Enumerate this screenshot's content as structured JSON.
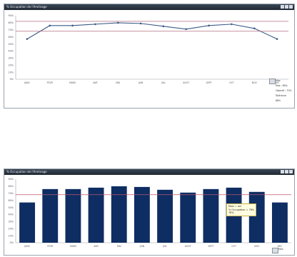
{
  "panel_top": {
    "title": "% Occupation de l'Aménage"
  },
  "panel_bottom": {
    "title": "% Occupation de l'Aménage"
  },
  "chart_data": [
    {
      "type": "line",
      "categories": [
        "JANV",
        "FÉVR",
        "MARS",
        "AVR",
        "MAI",
        "JUIN",
        "JUIL",
        "AOÛT",
        "SEPT",
        "OCT",
        "NOV",
        "DÉC"
      ],
      "series": [
        {
          "values": [
            57,
            76,
            76,
            78,
            80,
            79,
            75,
            71,
            76,
            78,
            72,
            57
          ]
        }
      ],
      "ylim": [
        0,
        90
      ],
      "yticks": [
        "0%",
        "10%",
        "20%",
        "30%",
        "40%",
        "50%",
        "60%",
        "70%",
        "80%",
        "90%"
      ],
      "reference_lines": [
        82,
        68
      ],
      "grid": false,
      "colors": {
        "line": "#3b5a86",
        "reference": "#b46d7f"
      }
    },
    {
      "type": "bar",
      "categories": [
        "JANV",
        "FÉVR",
        "MARS",
        "AVR",
        "MAI",
        "JUIN",
        "JUIL",
        "AOÛT",
        "SEPT",
        "OCT",
        "NOV",
        "DÉC"
      ],
      "series": [
        {
          "values": [
            57,
            76,
            76,
            78,
            80,
            79,
            75,
            71,
            76,
            78,
            72,
            57
          ]
        }
      ],
      "ylim": [
        0,
        90
      ],
      "yticks": [
        "0%",
        "10%",
        "20%",
        "30%",
        "40%",
        "50%",
        "60%",
        "70%",
        "80%",
        "90%"
      ],
      "reference_lines": [
        68
      ],
      "grid": false,
      "colors": {
        "bar": "#0e2d63",
        "reference": "#c0566a"
      }
    }
  ],
  "legend_top": {
    "items": [
      "Max : 80%",
      "Objectif : 70%",
      "Tolérance",
      "68%"
    ],
    "header": "Max"
  },
  "tooltip_bottom": {
    "lines": [
      "Mois = oct",
      "% Occupation = 78%",
      "78%"
    ]
  },
  "legend_bottom": {
    "header": "Max"
  }
}
